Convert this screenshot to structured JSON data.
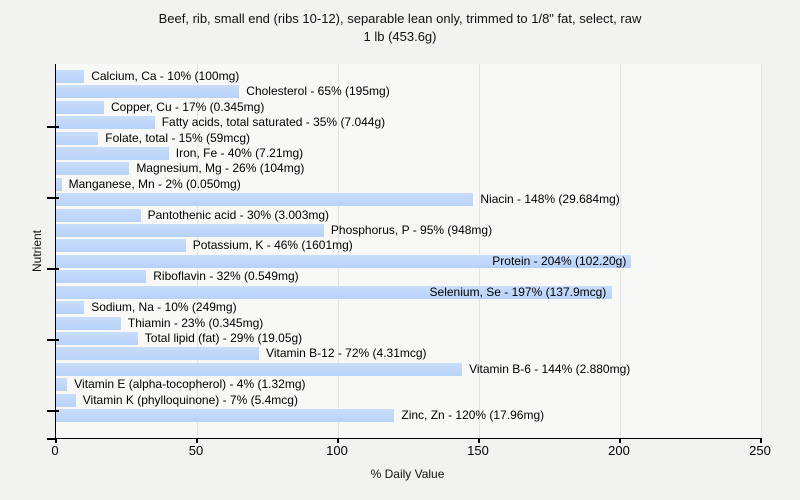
{
  "title": {
    "line1": "Beef, rib, small end (ribs 10-12), separable lean only, trimmed to 1/8\" fat, select, raw",
    "line2": "1 lb (453.6g)"
  },
  "axes": {
    "x_label": "% Daily Value",
    "y_label": "Nutrient"
  },
  "colors": {
    "bar_fill_top": "#c9ddfb",
    "bar_fill_bottom": "#b7d2f8",
    "page_bg": "#f2f2f0",
    "plot_bg": "#f8f8f6",
    "grid": "#e2e2e0",
    "axis": "#000000",
    "text": "#000000"
  },
  "chart_data": {
    "type": "bar",
    "orientation": "horizontal",
    "title": "Beef, rib, small end (ribs 10-12), separable lean only, trimmed to 1/8\" fat, select, raw — 1 lb (453.6g)",
    "xlabel": "% Daily Value",
    "ylabel": "Nutrient",
    "xlim": [
      0,
      250
    ],
    "x_ticks": [
      0,
      50,
      100,
      150,
      200,
      250
    ],
    "grid": true,
    "categories": [
      "Calcium, Ca",
      "Cholesterol",
      "Copper, Cu",
      "Fatty acids, total saturated",
      "Folate, total",
      "Iron, Fe",
      "Magnesium, Mg",
      "Manganese, Mn",
      "Niacin",
      "Pantothenic acid",
      "Phosphorus, P",
      "Potassium, K",
      "Protein",
      "Riboflavin",
      "Selenium, Se",
      "Sodium, Na",
      "Thiamin",
      "Total lipid (fat)",
      "Vitamin B-12",
      "Vitamin B-6",
      "Vitamin E (alpha-tocopherol)",
      "Vitamin K (phylloquinone)",
      "Zinc, Zn"
    ],
    "values": [
      10,
      65,
      17,
      35,
      15,
      40,
      26,
      2,
      148,
      30,
      95,
      46,
      204,
      32,
      197,
      10,
      23,
      29,
      72,
      144,
      4,
      7,
      120
    ],
    "amounts": [
      "100mg",
      "195mg",
      "0.345mg",
      "7.044g",
      "59mcg",
      "7.21mg",
      "104mg",
      "0.050mg",
      "29.684mg",
      "3.003mg",
      "948mg",
      "1601mg",
      "102.20g",
      "0.549mg",
      "137.9mcg",
      "249mg",
      "0.345mg",
      "19.05g",
      "4.31mcg",
      "2.880mg",
      "1.32mg",
      "5.4mcg",
      "17.96mg"
    ]
  }
}
